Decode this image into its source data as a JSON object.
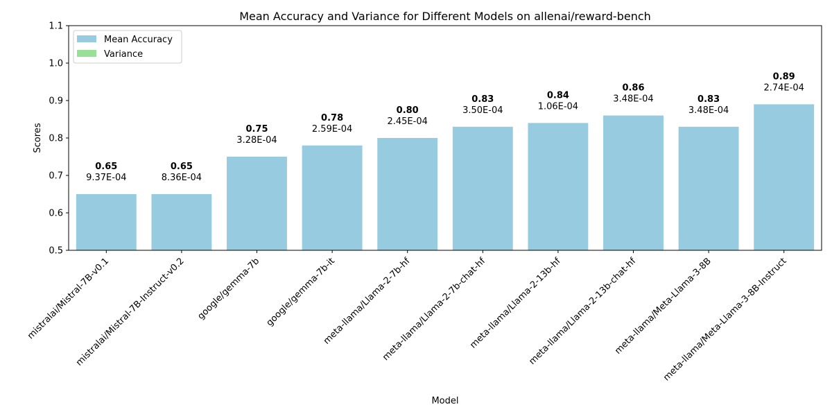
{
  "chart_data": {
    "type": "bar",
    "title": "Mean Accuracy and Variance for Different Models on allenai/reward-bench",
    "xlabel": "Model",
    "ylabel": "Scores",
    "ylim": [
      0.5,
      1.1
    ],
    "yticks": [
      "0.5",
      "0.6",
      "0.7",
      "0.8",
      "0.9",
      "1.0",
      "1.1"
    ],
    "grid": false,
    "legend_position": "top-left",
    "categories": [
      "mistralai/Mistral-7B-v0.1",
      "mistralai/Mistral-7B-Instruct-v0.2",
      "google/gemma-7b",
      "google/gemma-7b-it",
      "meta-llama/Llama-2-7b-hf",
      "meta-llama/Llama-2-7b-chat-hf",
      "meta-llama/Llama-2-13b-hf",
      "meta-llama/Llama-2-13b-chat-hf",
      "meta-llama/Meta-Llama-3-8B",
      "meta-llama/Meta-Llama-3-8B-Instruct"
    ],
    "series": [
      {
        "name": "Mean Accuracy",
        "color": "#96cbe0",
        "values": [
          0.65,
          0.65,
          0.75,
          0.78,
          0.8,
          0.83,
          0.84,
          0.86,
          0.83,
          0.89
        ],
        "value_labels": [
          "0.65",
          "0.65",
          "0.75",
          "0.78",
          "0.80",
          "0.83",
          "0.84",
          "0.86",
          "0.83",
          "0.89"
        ]
      },
      {
        "name": "Variance",
        "color": "#98e098",
        "values": [
          0.000937,
          0.000836,
          0.000328,
          0.000259,
          0.000245,
          0.00035,
          0.000106,
          0.000348,
          0.000348,
          0.000274
        ],
        "value_labels": [
          "9.37E-04",
          "8.36E-04",
          "3.28E-04",
          "2.59E-04",
          "2.45E-04",
          "3.50E-04",
          "1.06E-04",
          "3.48E-04",
          "3.48E-04",
          "2.74E-04"
        ]
      }
    ]
  }
}
